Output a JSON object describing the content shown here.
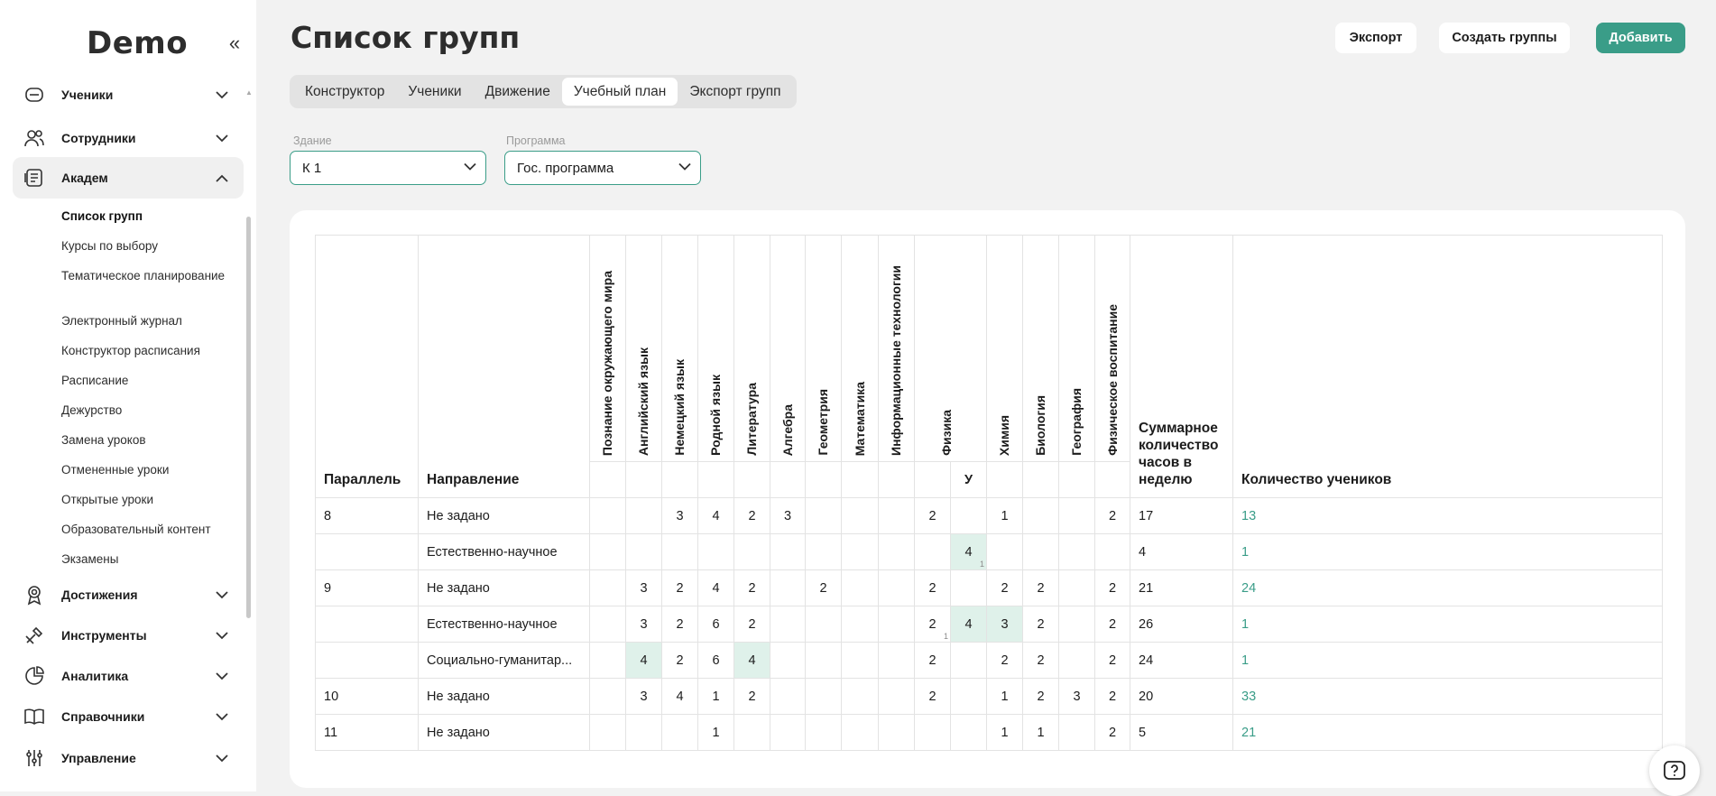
{
  "app": {
    "logo": "Demo"
  },
  "sidebar": {
    "sections": [
      {
        "label": "Ученики",
        "icon": "students-icon"
      },
      {
        "label": "Сотрудники",
        "icon": "staff-icon"
      },
      {
        "label": "Академ",
        "icon": "academic-icon"
      },
      {
        "label": "Достижения",
        "icon": "award-icon"
      },
      {
        "label": "Инструменты",
        "icon": "tools-icon"
      },
      {
        "label": "Аналитика",
        "icon": "chart-pie-icon"
      },
      {
        "label": "Справочники",
        "icon": "book-icon"
      },
      {
        "label": "Управление",
        "icon": "sliders-icon"
      }
    ],
    "subitems": [
      "Список групп",
      "Курсы по выбору",
      "Тематическое планирование",
      "Электронный журнал",
      "Конструктор расписания",
      "Расписание",
      "Дежурство",
      "Замена уроков",
      "Отмененные уроки",
      "Открытые уроки",
      "Образовательный контент",
      "Экзамены"
    ]
  },
  "header": {
    "title": "Список групп",
    "export_label": "Экспорт",
    "create_groups_label": "Создать группы",
    "add_label": "Добавить"
  },
  "tabs": [
    "Конструктор",
    "Ученики",
    "Движение",
    "Учебный план",
    "Экспорт групп"
  ],
  "filters": {
    "building": {
      "label": "Здание",
      "value": "К 1"
    },
    "program": {
      "label": "Программа",
      "value": "Гос. программа"
    }
  },
  "table": {
    "col_parallel": "Параллель",
    "col_direction": "Направление",
    "subjects": [
      "Познание окружающего мира",
      "Английский язык",
      "Немецкий язык",
      "Родной язык",
      "Литература",
      "Алгебра",
      "Геометрия",
      "Математика",
      "Информационные технологии",
      "Физика",
      "",
      "Химия",
      "Биология",
      "География",
      "Физическое воспитание"
    ],
    "subheader_u": "У",
    "col_total_hours": "Суммарное количество часов в неделю",
    "col_students": "Количество учеников",
    "rows": [
      {
        "parallel": "8",
        "direction": "Не задано",
        "cells": [
          "",
          "",
          "3",
          "4",
          "2",
          "3",
          "",
          "",
          "",
          "2",
          "",
          "1",
          "",
          "",
          "2"
        ],
        "total": "17",
        "students": "13"
      },
      {
        "parallel": "",
        "direction": "Естественно-научное",
        "cells": [
          "",
          "",
          "",
          "",
          "",
          "",
          "",
          "",
          "",
          "",
          "4",
          "",
          "",
          "",
          ""
        ],
        "total": "4",
        "students": "1"
      },
      {
        "parallel": "9",
        "direction": "Не задано",
        "cells": [
          "",
          "3",
          "2",
          "4",
          "2",
          "",
          "2",
          "",
          "",
          "2",
          "",
          "2",
          "2",
          "",
          "2"
        ],
        "total": "21",
        "students": "24"
      },
      {
        "parallel": "",
        "direction": "Естественно-научное",
        "cells": [
          "",
          "3",
          "2",
          "6",
          "2",
          "",
          "",
          "",
          "",
          "2",
          "4",
          "3",
          "2",
          "",
          "2"
        ],
        "total": "26",
        "students": "1"
      },
      {
        "parallel": "",
        "direction": "Социально-гуманитар...",
        "cells": [
          "",
          "4",
          "2",
          "6",
          "4",
          "",
          "",
          "",
          "",
          "2",
          "",
          "2",
          "2",
          "",
          "2"
        ],
        "total": "24",
        "students": "1"
      },
      {
        "parallel": "10",
        "direction": "Не задано",
        "cells": [
          "",
          "3",
          "4",
          "1",
          "2",
          "",
          "",
          "",
          "",
          "2",
          "",
          "1",
          "2",
          "3",
          "2"
        ],
        "total": "20",
        "students": "33"
      },
      {
        "parallel": "11",
        "direction": "Не задано",
        "cells": [
          "",
          "",
          "",
          "1",
          "",
          "",
          "",
          "",
          "",
          "",
          "",
          "1",
          "1",
          "",
          "2"
        ],
        "total": "5",
        "students": "21"
      }
    ],
    "mini_marks": {
      "r1c10": "1",
      "r3c9": "1"
    }
  },
  "colors": {
    "accent": "#3a9d88",
    "highlight": "#dff1ea"
  }
}
